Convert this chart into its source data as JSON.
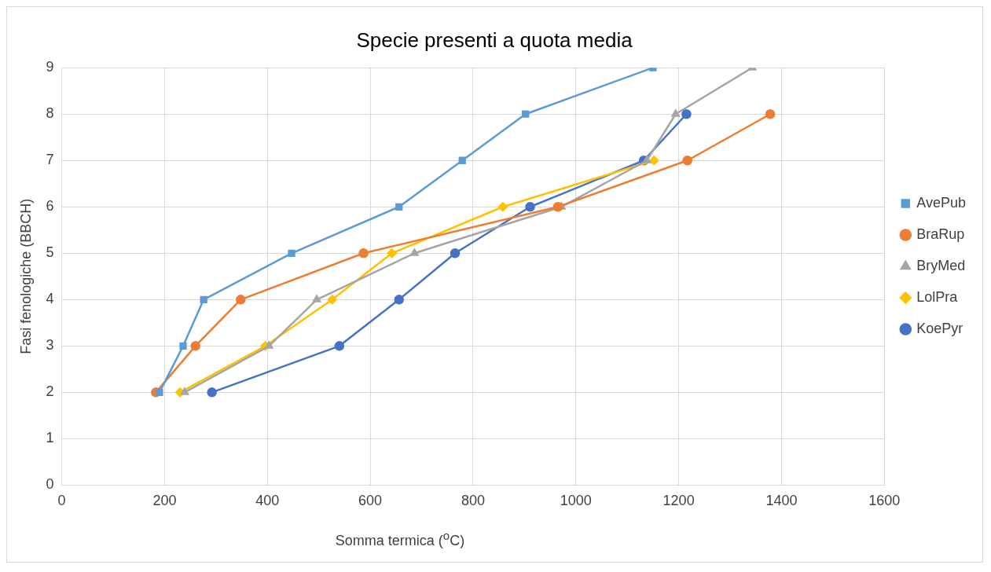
{
  "chart_data": {
    "type": "line",
    "title": "Specie presenti a quota media",
    "xlabel": "Somma termica ($^{o}$C)",
    "ylabel": "Fasi fenologiche (BBCH)",
    "xlim": [
      0,
      1600
    ],
    "xticks": [
      0,
      200,
      400,
      600,
      800,
      1000,
      1200,
      1400,
      1600
    ],
    "ylim": [
      0,
      9
    ],
    "yticks": [
      0,
      1,
      2,
      3,
      4,
      5,
      6,
      7,
      8,
      9
    ],
    "grid": true,
    "legend": "right",
    "line_style": "solid",
    "series": [
      {
        "name": "AvePub",
        "color": "#5b9bd5",
        "marker": "square",
        "x": [
          190,
          236,
          276,
          447,
          656,
          779,
          902,
          1150
        ],
        "values": [
          2,
          3,
          4,
          5,
          6,
          7,
          8,
          9
        ]
      },
      {
        "name": "BraRup",
        "color": "#ed7d31",
        "marker": "circle",
        "x": [
          183,
          260,
          348,
          587,
          965,
          1217,
          1378
        ],
        "values": [
          2,
          3,
          4,
          5,
          6,
          7,
          8
        ]
      },
      {
        "name": "BryMed",
        "color": "#a5a5a5",
        "marker": "triangle",
        "x": [
          239,
          403,
          496,
          686,
          972,
          1138,
          1194,
          1343
        ],
        "values": [
          2,
          3,
          4,
          5,
          6,
          7,
          8,
          9
        ]
      },
      {
        "name": "LolPra",
        "color": "#ffc000",
        "marker": "diamond",
        "x": [
          230,
          396,
          526,
          642,
          858,
          1152
        ],
        "values": [
          2,
          3,
          4,
          5,
          6,
          7
        ]
      },
      {
        "name": "KoePyr",
        "color": "#4472c4",
        "marker": "circle",
        "x": [
          292,
          540,
          656,
          765,
          911,
          1132,
          1215
        ],
        "values": [
          2,
          3,
          4,
          5,
          6,
          7,
          8
        ]
      }
    ]
  }
}
